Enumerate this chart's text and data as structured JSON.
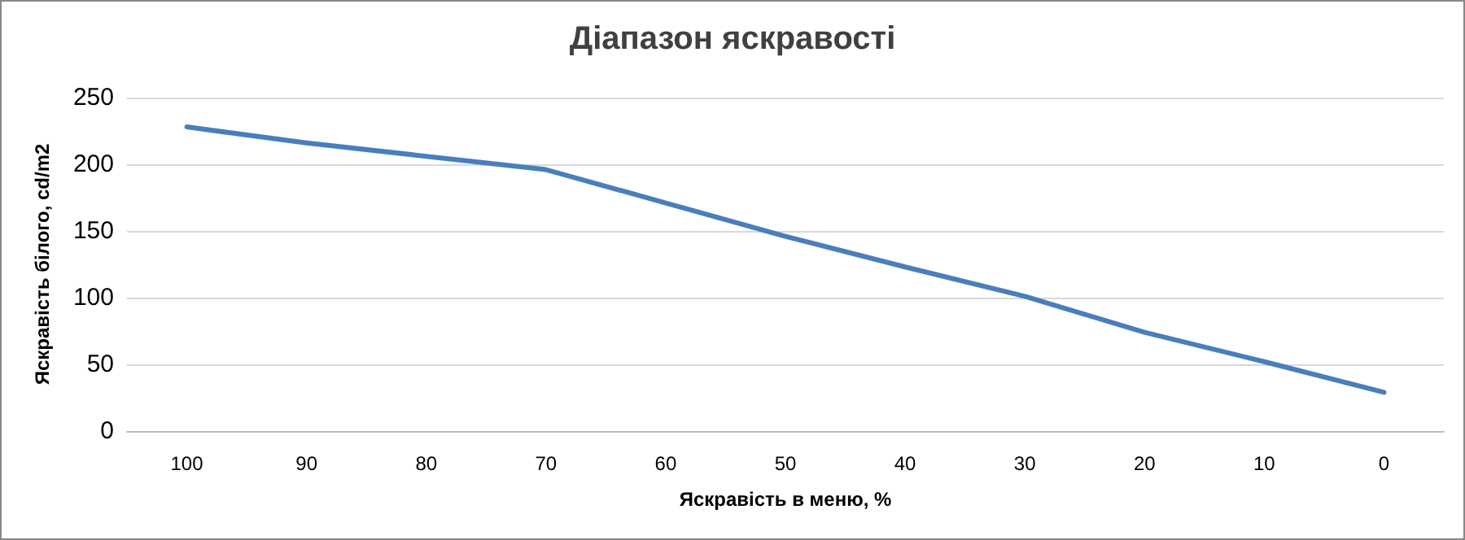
{
  "chart_data": {
    "type": "line",
    "title": "Діапазон яскравості",
    "xlabel": "Яскравість в меню, %",
    "ylabel": "Яскравість білого, cd/m2",
    "categories": [
      "100",
      "90",
      "80",
      "70",
      "60",
      "50",
      "40",
      "30",
      "20",
      "10",
      "0"
    ],
    "series": [
      {
        "color": "#4a7ebb",
        "values": [
          228,
          216,
          206,
          196,
          171,
          146,
          123,
          101,
          74,
          52,
          29
        ]
      }
    ],
    "ylim": [
      0,
      250
    ],
    "yticks": [
      0,
      50,
      100,
      150,
      200,
      250
    ],
    "grid": "y",
    "marker": "none",
    "line_style": "solid"
  }
}
